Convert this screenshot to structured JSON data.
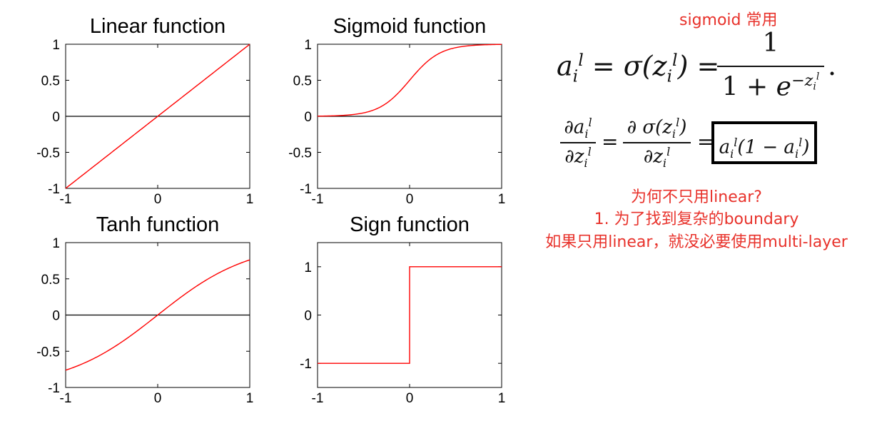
{
  "chart_data": [
    {
      "type": "line",
      "title": "Linear function",
      "function": "linear",
      "xlim": [
        -1,
        1
      ],
      "ylim": [
        -1,
        1
      ],
      "xticks": [
        "-1",
        "0",
        "1"
      ],
      "yticks": [
        "1",
        "0.5",
        "0",
        "-0.5",
        "-1"
      ],
      "x": [
        -1,
        0,
        1
      ],
      "y": [
        -1,
        0,
        1
      ],
      "line_color": "#ff0000",
      "zero_line": true
    },
    {
      "type": "line",
      "title": "Sigmoid function",
      "function": "sigmoid",
      "xlim": [
        -1,
        1
      ],
      "ylim": [
        -1,
        1
      ],
      "xticks": [
        "-1",
        "0",
        "1"
      ],
      "yticks": [
        "1",
        "0.5",
        "0",
        "-0.5",
        "-1"
      ],
      "x": [
        -1,
        -0.5,
        0,
        0.5,
        1
      ],
      "y": [
        0.0,
        0.05,
        0.5,
        0.95,
        1.0
      ],
      "line_color": "#ff0000",
      "zero_line": true
    },
    {
      "type": "line",
      "title": "Tanh function",
      "function": "tanh",
      "xlim": [
        -1,
        1
      ],
      "ylim": [
        -1,
        1
      ],
      "xticks": [
        "-1",
        "0",
        "1"
      ],
      "yticks": [
        "1",
        "0.5",
        "0",
        "-0.5",
        "-1"
      ],
      "x": [
        -1,
        0,
        1
      ],
      "y": [
        -0.76,
        0,
        0.76
      ],
      "line_color": "#ff0000",
      "zero_line": true
    },
    {
      "type": "line",
      "title": "Sign function",
      "function": "sign",
      "xlim": [
        -1,
        1
      ],
      "ylim": [
        -1.5,
        1.5
      ],
      "xticks": [
        "-1",
        "0",
        "1"
      ],
      "yticks": [
        "1",
        "0",
        "-1"
      ],
      "x": [
        -1,
        0,
        0,
        1
      ],
      "y": [
        -1,
        -1,
        1,
        1
      ],
      "line_color": "#ff0000",
      "zero_line": false
    }
  ],
  "notes": {
    "sigmoid_note": "sigmoid 常用",
    "why_title": "为何不只用linear?",
    "why_line1": "1. 为了找到复杂的boundary",
    "why_line2": "如果只用linear，就没必要使用multi-layer"
  },
  "colors": {
    "annotation": "#e8322b",
    "curve": "#ff0000",
    "axis": "#000000"
  }
}
